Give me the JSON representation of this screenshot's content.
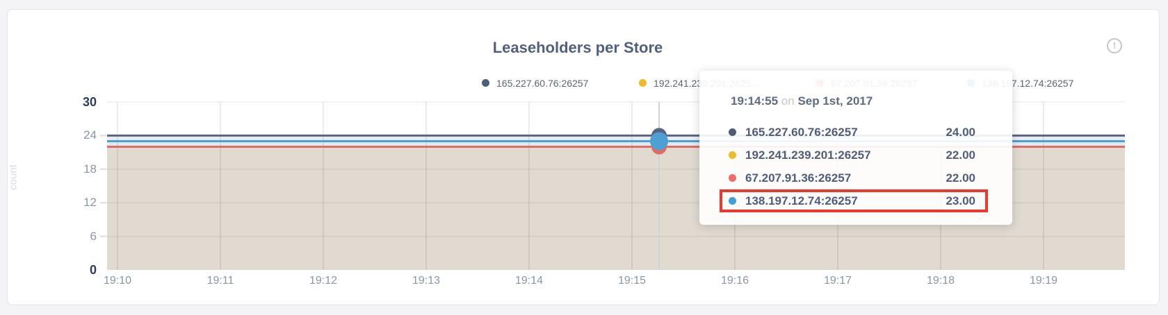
{
  "card": {
    "title": "Leaseholders per Store",
    "info_icon_glyph": "!"
  },
  "y_axis": {
    "label": "count",
    "ticks": [
      {
        "value": "30",
        "bold": true
      },
      {
        "value": "24",
        "bold": false
      },
      {
        "value": "18",
        "bold": false
      },
      {
        "value": "12",
        "bold": false
      },
      {
        "value": "6",
        "bold": false
      },
      {
        "value": "0",
        "bold": true
      }
    ]
  },
  "x_axis": {
    "ticks": [
      "19:10",
      "19:11",
      "19:12",
      "19:13",
      "19:14",
      "19:15",
      "19:16",
      "19:17",
      "19:18",
      "19:19"
    ]
  },
  "legend": {
    "items": [
      {
        "label": "165.227.60.76:26257",
        "color": "#4e5d7a"
      },
      {
        "label": "192.241.239.201:2625...",
        "color": "#ecba2d"
      },
      {
        "label": "67.207.91.36:26257",
        "color": "#ee6b66"
      },
      {
        "label": "138.197.12.74:26257",
        "color": "#3f9fd8"
      }
    ]
  },
  "tooltip": {
    "time": "19:14:55",
    "connector": "on",
    "date": "Sep 1st, 2017",
    "highlight_color": "#ef382c",
    "rows": [
      {
        "name": "165.227.60.76:26257",
        "value": "24.00",
        "color": "#4e5d7a",
        "highlighted": false
      },
      {
        "name": "192.241.239.201:26257",
        "value": "22.00",
        "color": "#ecba2d",
        "highlighted": false
      },
      {
        "name": "67.207.91.36:26257",
        "value": "22.00",
        "color": "#ee6b66",
        "highlighted": false
      },
      {
        "name": "138.197.12.74:26257",
        "value": "23.00",
        "color": "#3f9fd8",
        "highlighted": true
      }
    ]
  },
  "chart_data": {
    "type": "line",
    "title": "Leaseholders per Store",
    "xlabel": "",
    "ylabel": "count",
    "ylim": [
      0,
      30
    ],
    "grid": true,
    "legend_position": "top",
    "x": [
      "19:10",
      "19:11",
      "19:12",
      "19:13",
      "19:14",
      "19:15",
      "19:16",
      "19:17",
      "19:18",
      "19:19"
    ],
    "hover_time": "19:14:55",
    "series": [
      {
        "name": "165.227.60.76:26257",
        "color": "#5a6480",
        "values": [
          24,
          24,
          24,
          24,
          24,
          24,
          24,
          24,
          24,
          24
        ]
      },
      {
        "name": "192.241.239.201:26257",
        "color": "#ecba2d",
        "values": [
          22,
          22,
          22,
          22,
          22,
          22,
          22,
          22,
          22,
          22
        ]
      },
      {
        "name": "67.207.91.36:26257",
        "color": "#df6b63",
        "values": [
          22,
          22,
          22,
          22,
          22,
          22,
          22,
          22,
          22,
          22
        ]
      },
      {
        "name": "138.197.12.74:26257",
        "color": "#4e9fd4",
        "values": [
          23,
          23,
          23,
          23,
          23,
          23,
          23,
          23,
          23,
          23
        ]
      }
    ]
  }
}
